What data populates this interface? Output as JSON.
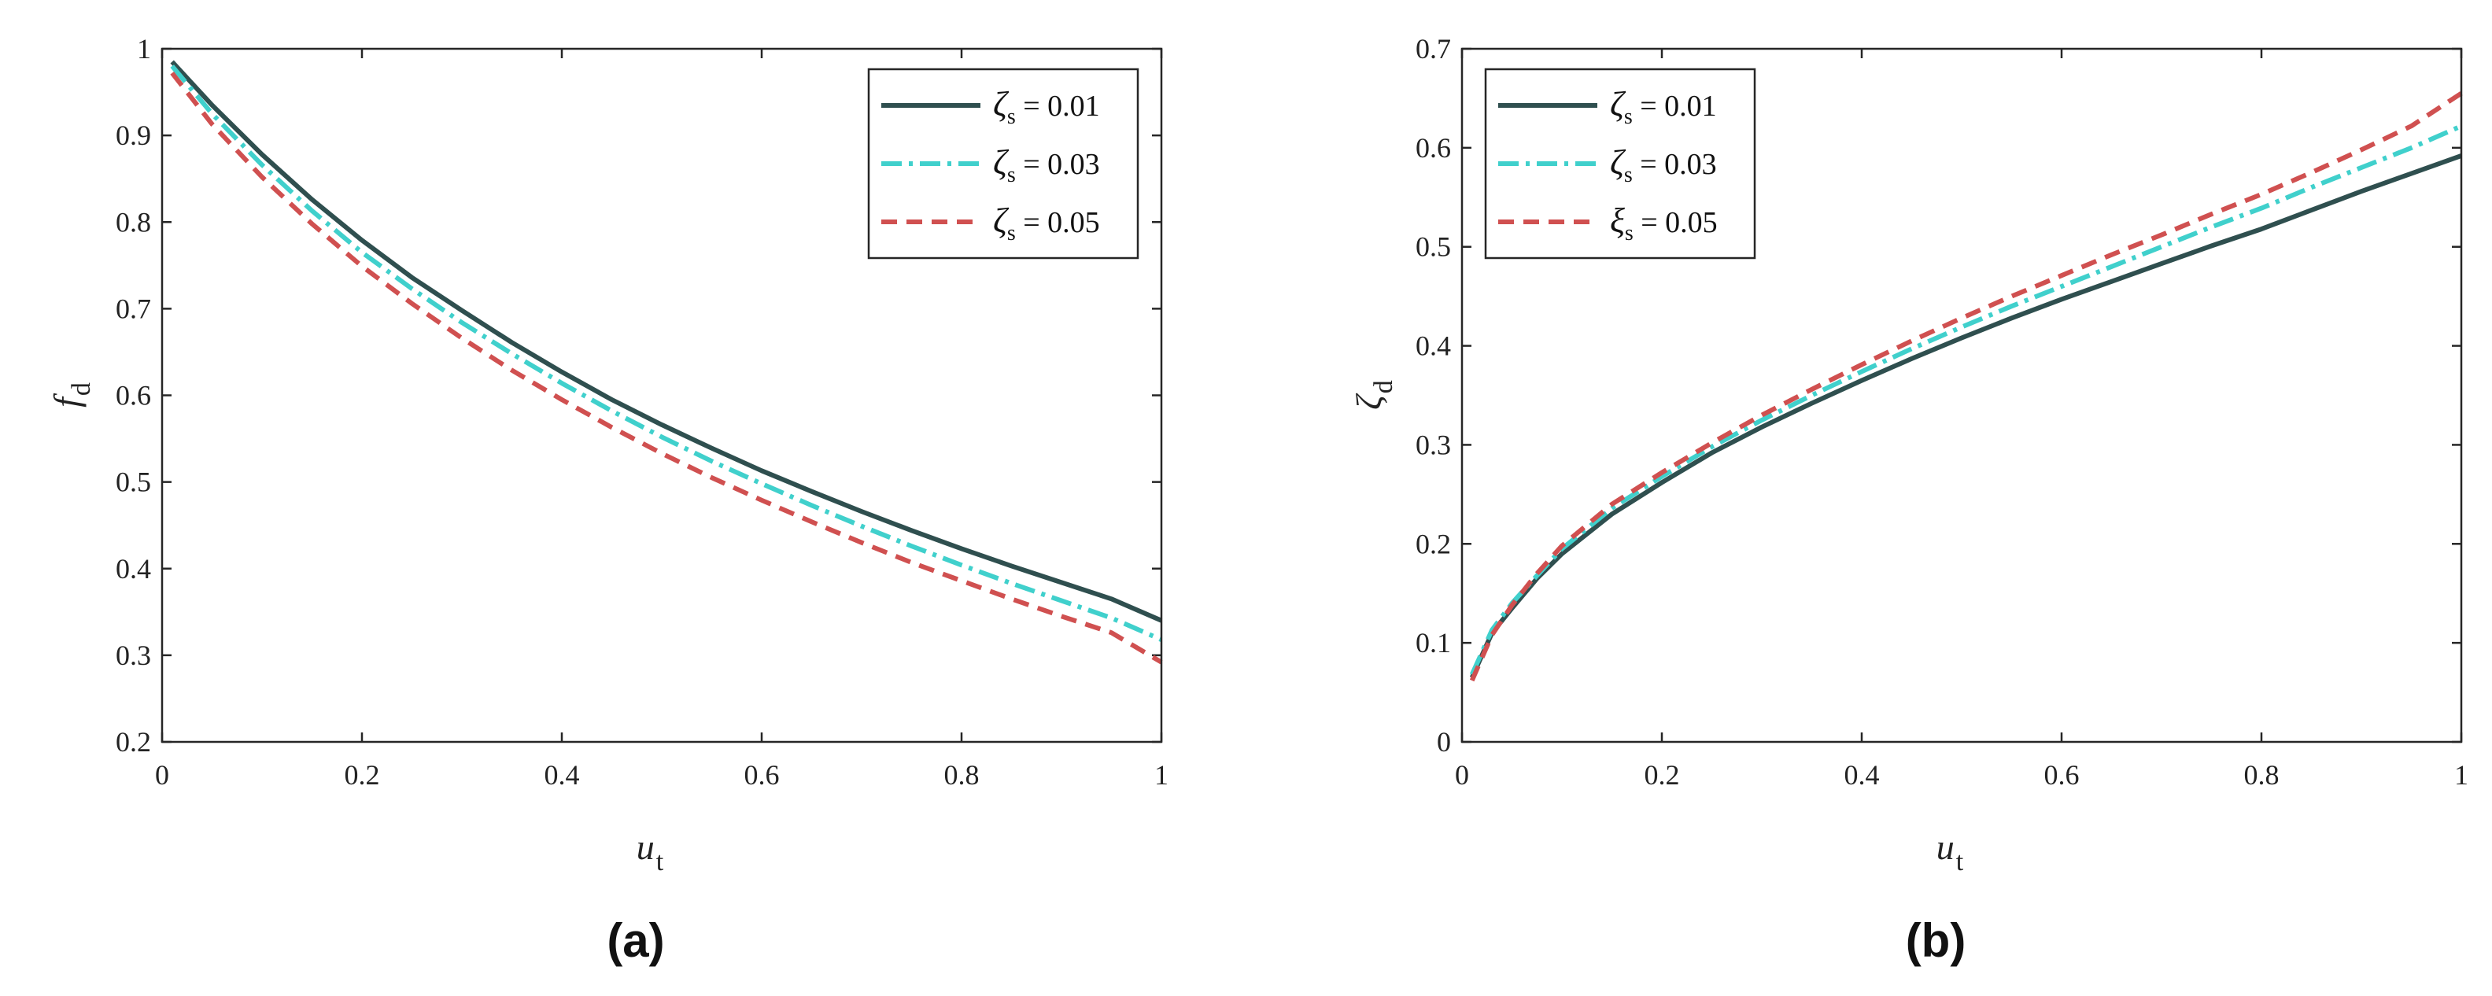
{
  "colors": {
    "s1": "#2f4f4f",
    "s2": "#40d0cc",
    "s3": "#d05050"
  },
  "chart_data": [
    {
      "id": "a",
      "type": "line",
      "panel_label": "(a)",
      "xlabel": {
        "main": "u",
        "sub": "t"
      },
      "ylabel": {
        "main": "f",
        "sub": "d"
      },
      "xlim": [
        0,
        1
      ],
      "ylim": [
        0.2,
        1
      ],
      "xticks": [
        "0",
        "0.2",
        "0.4",
        "0.6",
        "0.8",
        "1"
      ],
      "yticks": [
        "0.2",
        "0.3",
        "0.4",
        "0.5",
        "0.6",
        "0.7",
        "0.8",
        "0.9",
        "1"
      ],
      "legend_position": "top-right",
      "x": [
        0.01,
        0.05,
        0.1,
        0.15,
        0.2,
        0.25,
        0.3,
        0.35,
        0.4,
        0.45,
        0.5,
        0.55,
        0.6,
        0.65,
        0.7,
        0.75,
        0.8,
        0.85,
        0.9,
        0.95,
        1.0
      ],
      "series": [
        {
          "name": "ζs = 0.01",
          "symbol": "ζ",
          "sub": "s",
          "value": " = 0.01",
          "style": "solid",
          "color_key": "s1",
          "values": [
            0.985,
            0.935,
            0.878,
            0.826,
            0.779,
            0.736,
            0.698,
            0.661,
            0.627,
            0.595,
            0.566,
            0.539,
            0.513,
            0.489,
            0.466,
            0.444,
            0.423,
            0.403,
            0.384,
            0.365,
            0.34
          ]
        },
        {
          "name": "ζs = 0.03",
          "symbol": "ζ",
          "sub": "s",
          "value": " = 0.03",
          "style": "dashdot",
          "color_key": "s2",
          "values": [
            0.98,
            0.925,
            0.866,
            0.813,
            0.765,
            0.723,
            0.684,
            0.648,
            0.614,
            0.582,
            0.552,
            0.524,
            0.498,
            0.473,
            0.449,
            0.426,
            0.404,
            0.383,
            0.363,
            0.343,
            0.318
          ]
        },
        {
          "name": "ζs = 0.05",
          "symbol": "ζ",
          "sub": "s",
          "value": " = 0.05",
          "style": "dashed",
          "color_key": "s3",
          "values": [
            0.972,
            0.913,
            0.852,
            0.798,
            0.749,
            0.706,
            0.666,
            0.629,
            0.595,
            0.563,
            0.533,
            0.505,
            0.479,
            0.454,
            0.43,
            0.407,
            0.386,
            0.365,
            0.345,
            0.326,
            0.292
          ]
        }
      ]
    },
    {
      "id": "b",
      "type": "line",
      "panel_label": "(b)",
      "xlabel": {
        "main": "u",
        "sub": "t"
      },
      "ylabel": {
        "main": "ζ",
        "sub": "d"
      },
      "xlim": [
        0,
        1
      ],
      "ylim": [
        0,
        0.7
      ],
      "xticks": [
        "0",
        "0.2",
        "0.4",
        "0.6",
        "0.8",
        "1"
      ],
      "yticks": [
        "0",
        "0.1",
        "0.2",
        "0.3",
        "0.4",
        "0.5",
        "0.6",
        "0.7"
      ],
      "legend_position": "top-left",
      "x": [
        0.01,
        0.03,
        0.05,
        0.075,
        0.1,
        0.15,
        0.2,
        0.25,
        0.3,
        0.35,
        0.4,
        0.45,
        0.5,
        0.55,
        0.6,
        0.65,
        0.7,
        0.75,
        0.8,
        0.85,
        0.9,
        0.95,
        1.0
      ],
      "series": [
        {
          "name": "ζs = 0.01",
          "symbol": "ζ",
          "sub": "s",
          "value": " = 0.01",
          "style": "solid",
          "color_key": "s1",
          "values": [
            0.065,
            0.11,
            0.135,
            0.165,
            0.19,
            0.23,
            0.262,
            0.292,
            0.318,
            0.342,
            0.365,
            0.387,
            0.408,
            0.428,
            0.447,
            0.465,
            0.483,
            0.501,
            0.518,
            0.537,
            0.556,
            0.574,
            0.592
          ]
        },
        {
          "name": "ζs = 0.03",
          "symbol": "ζ",
          "sub": "s",
          "value": " = 0.03",
          "style": "dashdot",
          "color_key": "s2",
          "values": [
            0.068,
            0.113,
            0.14,
            0.168,
            0.195,
            0.236,
            0.268,
            0.298,
            0.325,
            0.35,
            0.374,
            0.397,
            0.419,
            0.44,
            0.46,
            0.48,
            0.5,
            0.52,
            0.539,
            0.56,
            0.58,
            0.6,
            0.622
          ]
        },
        {
          "name": "ξs = 0.05",
          "symbol": "ξ",
          "sub": "s",
          "value": " = 0.05",
          "style": "dashed",
          "color_key": "s3",
          "values": [
            0.062,
            0.108,
            0.138,
            0.17,
            0.198,
            0.24,
            0.272,
            0.302,
            0.33,
            0.356,
            0.381,
            0.405,
            0.428,
            0.45,
            0.471,
            0.492,
            0.512,
            0.533,
            0.553,
            0.575,
            0.598,
            0.622,
            0.655
          ]
        }
      ]
    }
  ]
}
